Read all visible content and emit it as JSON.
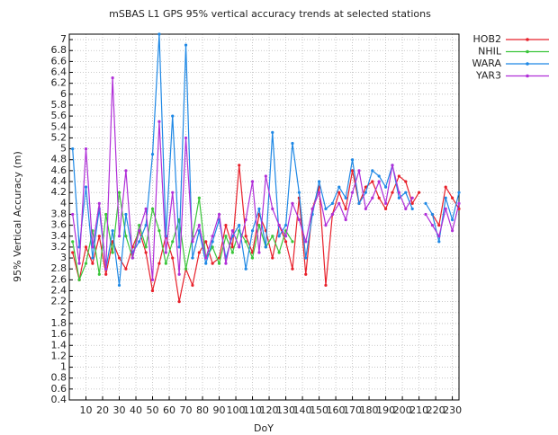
{
  "chart_data": {
    "type": "line",
    "title": "mSBAS L1 GPS 95% vertical accuracy trends at selected stations",
    "x_label": "DoY",
    "y_label": "95% Vertical Accuracy (m)",
    "x": [
      2,
      6,
      10,
      14,
      18,
      22,
      26,
      30,
      34,
      38,
      42,
      46,
      50,
      54,
      58,
      62,
      66,
      70,
      74,
      78,
      82,
      86,
      90,
      94,
      98,
      102,
      106,
      110,
      114,
      118,
      122,
      126,
      130,
      134,
      138,
      142,
      146,
      150,
      154,
      158,
      162,
      166,
      170,
      174,
      178,
      182,
      186,
      190,
      194,
      198,
      202,
      206,
      210,
      214,
      218,
      222,
      226,
      230,
      234
    ],
    "series": [
      {
        "name": "HOB2",
        "color": "#e8202a",
        "values": [
          3.1,
          2.6,
          3.2,
          2.9,
          3.4,
          2.7,
          3.3,
          3.0,
          2.8,
          3.2,
          3.5,
          3.1,
          2.4,
          2.9,
          3.4,
          3.0,
          2.2,
          2.8,
          2.5,
          3.1,
          3.3,
          2.9,
          3.0,
          3.6,
          3.2,
          4.7,
          3.4,
          3.1,
          3.8,
          3.5,
          3.0,
          3.6,
          3.3,
          2.8,
          4.1,
          2.7,
          3.9,
          4.3,
          2.5,
          3.8,
          4.2,
          3.9,
          4.6,
          4.0,
          4.3,
          4.4,
          4.1,
          3.9,
          4.2,
          4.5,
          4.4,
          4.0,
          4.2,
          null,
          3.8,
          3.6,
          4.3,
          4.1,
          3.9
        ]
      },
      {
        "name": "NHIL",
        "color": "#3ac53a",
        "values": [
          3.3,
          2.6,
          2.9,
          3.5,
          2.7,
          3.8,
          3.1,
          4.2,
          3.4,
          3.0,
          3.6,
          3.2,
          3.9,
          3.5,
          2.9,
          3.3,
          3.7,
          2.8,
          3.4,
          4.1,
          3.0,
          3.2,
          2.9,
          3.4,
          3.1,
          3.5,
          3.3,
          3.0,
          3.6,
          3.2,
          3.4,
          3.1,
          3.5,
          3.3,
          null,
          null,
          null,
          null,
          null,
          null,
          null,
          null,
          null,
          null,
          null,
          null,
          null,
          null,
          null,
          null,
          null,
          null,
          null,
          null,
          null,
          null,
          null,
          null,
          null
        ]
      },
      {
        "name": "WARA",
        "color": "#1e88e5",
        "values": [
          5.0,
          3.2,
          4.3,
          3.0,
          3.9,
          2.8,
          3.5,
          2.5,
          3.8,
          3.1,
          3.3,
          3.6,
          4.9,
          7.1,
          3.4,
          5.6,
          3.2,
          6.9,
          3.0,
          3.5,
          2.9,
          3.3,
          3.7,
          3.0,
          3.4,
          3.6,
          2.8,
          3.5,
          3.9,
          3.2,
          5.3,
          3.4,
          3.6,
          5.1,
          4.2,
          3.0,
          3.8,
          4.4,
          3.9,
          4.0,
          4.3,
          4.1,
          4.8,
          4.0,
          4.2,
          4.6,
          4.5,
          4.3,
          4.7,
          4.1,
          4.2,
          3.9,
          null,
          4.0,
          3.8,
          3.3,
          4.1,
          3.7,
          4.2
        ]
      },
      {
        "name": "YAR3",
        "color": "#b02fd8",
        "values": [
          3.8,
          2.9,
          5.0,
          3.2,
          4.0,
          2.8,
          6.3,
          3.4,
          4.6,
          3.0,
          3.5,
          3.9,
          2.6,
          5.5,
          3.1,
          4.2,
          2.7,
          5.2,
          3.3,
          3.6,
          3.0,
          3.4,
          3.8,
          2.9,
          3.5,
          3.2,
          3.7,
          4.4,
          3.1,
          4.5,
          3.9,
          3.6,
          3.4,
          4.0,
          3.7,
          3.3,
          3.9,
          4.2,
          3.6,
          3.8,
          4.0,
          3.7,
          4.2,
          4.6,
          3.9,
          4.1,
          4.4,
          4.0,
          4.7,
          4.2,
          3.9,
          4.1,
          null,
          3.8,
          3.6,
          3.4,
          3.9,
          3.5,
          4.0
        ]
      }
    ],
    "xlim": [
      0,
      234
    ],
    "ylim": [
      0.4,
      7.1
    ],
    "xticks": [
      10,
      20,
      30,
      40,
      50,
      60,
      70,
      80,
      90,
      100,
      110,
      120,
      130,
      140,
      150,
      160,
      170,
      180,
      190,
      200,
      210,
      220,
      230
    ],
    "yticks": [
      0.4,
      0.6,
      0.8,
      1,
      1.2,
      1.4,
      1.6,
      1.8,
      2,
      2.2,
      2.4,
      2.6,
      2.8,
      3,
      3.2,
      3.4,
      3.6,
      3.8,
      4,
      4.2,
      4.4,
      4.6,
      4.8,
      5,
      5.2,
      5.4,
      5.6,
      5.8,
      6,
      6.2,
      6.4,
      6.6,
      6.8,
      7
    ],
    "grid": true,
    "legend": "outside-right"
  }
}
